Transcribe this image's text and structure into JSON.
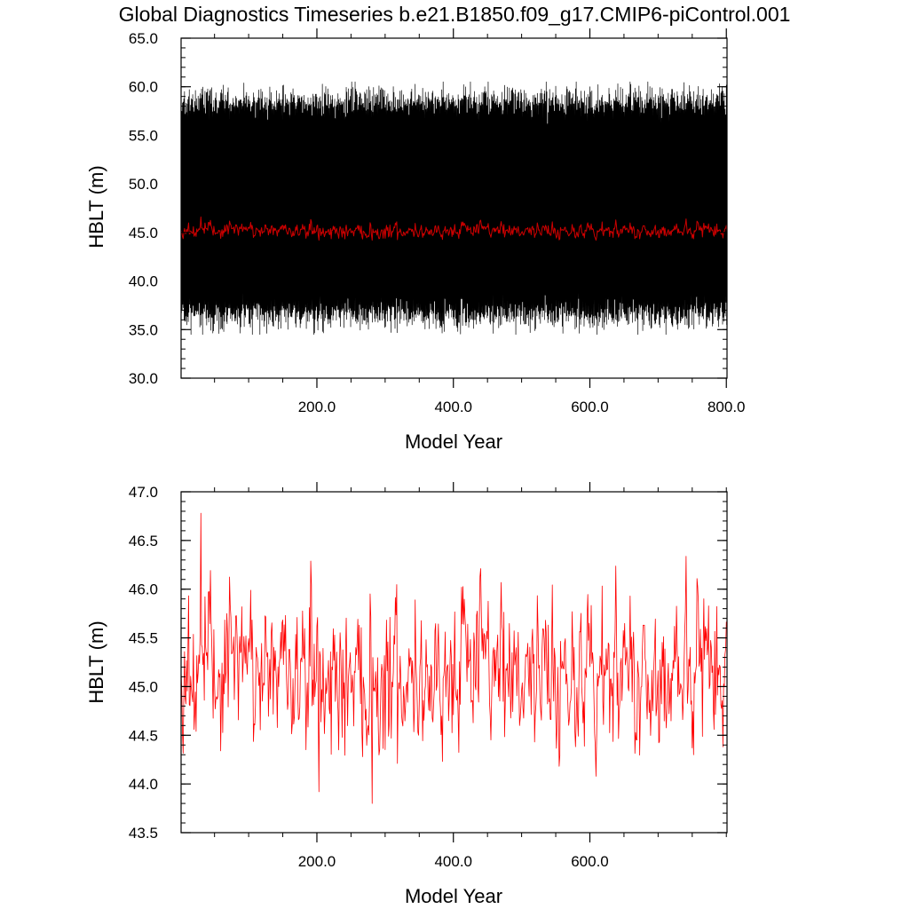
{
  "figure": {
    "title": "Global Diagnostics Timeseries b.e21.B1850.f09_g17.CMIP6-piControl.001"
  },
  "chart_data": [
    {
      "type": "line",
      "title": "Global Diagnostics Timeseries b.e21.B1850.f09_g17.CMIP6-piControl.001",
      "xlabel": "Model Year",
      "ylabel": "HBLT (m)",
      "xlim": [
        1,
        801
      ],
      "ylim": [
        30,
        65
      ],
      "x_ticks": [
        200,
        400,
        600,
        800
      ],
      "x_tick_labels": [
        "200.0",
        "400.0",
        "600.0",
        "800.0"
      ],
      "y_ticks": [
        30,
        35,
        40,
        45,
        50,
        55,
        60,
        65
      ],
      "y_tick_labels": [
        "30.0",
        "35.0",
        "40.0",
        "45.0",
        "50.0",
        "55.0",
        "60.0",
        "65.0"
      ],
      "grid": false,
      "legend": "none",
      "series": [
        {
          "kind": "monthly",
          "color": "#000000",
          "annual_cycle_min": 36.5,
          "annual_cycle_max": 58.5,
          "extreme_min": 34.5,
          "extreme_max": 60.5,
          "x_range": [
            1,
            801
          ]
        },
        {
          "kind": "annual_mean",
          "color": "#cc0000",
          "mean": 45.2,
          "min": 44.2,
          "max": 46.6,
          "x_range": [
            1,
            801
          ]
        }
      ]
    },
    {
      "type": "line",
      "xlabel": "Model Year",
      "ylabel": "HBLT (m)",
      "xlim": [
        1,
        801
      ],
      "ylim": [
        43.5,
        47.0
      ],
      "x_ticks": [
        200,
        400,
        600
      ],
      "x_tick_labels": [
        "200.0",
        "400.0",
        "600.0"
      ],
      "y_ticks": [
        43.5,
        44.0,
        44.5,
        45.0,
        45.5,
        46.0,
        46.5,
        47.0
      ],
      "y_tick_labels": [
        "43.5",
        "44.0",
        "44.5",
        "45.0",
        "45.5",
        "46.0",
        "46.5",
        "47.0"
      ],
      "grid": false,
      "legend": "none",
      "series": [
        {
          "kind": "annual_mean",
          "color": "#ff0000",
          "mean": 45.15,
          "min": 43.8,
          "max": 46.78,
          "x_range": [
            1,
            800
          ]
        }
      ]
    }
  ]
}
